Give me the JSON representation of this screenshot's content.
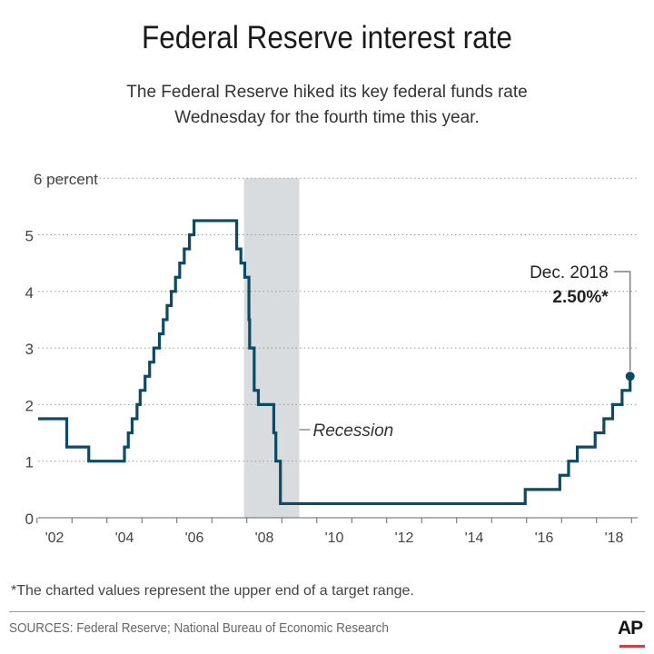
{
  "title": "Federal Reserve interest rate",
  "subtitle_line1": "The Federal Reserve hiked its key federal funds rate",
  "subtitle_line2": "Wednesday for the fourth time this year.",
  "footnote": "*The charted values represent the upper end of a target range.",
  "sources": "SOURCES: Federal Reserve; National Bureau of Economic Research",
  "logo": "AP",
  "colors": {
    "line": "#0d4a63",
    "recession": "#d9dcdf",
    "grid": "#999999",
    "logo_accent": "#d83a4a"
  },
  "chart_data": {
    "type": "line",
    "step": true,
    "ylim": [
      0,
      6
    ],
    "yticks": [
      0,
      1,
      2,
      3,
      4,
      5,
      6
    ],
    "ytick_labels": [
      "0",
      "1",
      "2",
      "3",
      "4",
      "5",
      "6 percent"
    ],
    "xlim": [
      2002.0,
      2019.0
    ],
    "xtick_labels": [
      "'02",
      "'04",
      "'06",
      "'08",
      "'10",
      "'12",
      "'14",
      "'16",
      "'18"
    ],
    "xtick_years": [
      2002,
      2004,
      2006,
      2008,
      2010,
      2012,
      2014,
      2016,
      2018
    ],
    "grid": "horizontal dotted",
    "recession": {
      "start": 2007.92,
      "end": 2009.5,
      "label": "Recession"
    },
    "annotation": {
      "label": "Dec. 2018",
      "value_label": "2.50%*",
      "x": 2018.96,
      "y": 2.5
    },
    "x": [
      2002.0,
      2002.85,
      2003.48,
      2004.5,
      2004.61,
      2004.72,
      2004.86,
      2004.95,
      2005.09,
      2005.22,
      2005.34,
      2005.5,
      2005.61,
      2005.72,
      2005.84,
      2005.96,
      2006.08,
      2006.21,
      2006.36,
      2006.49,
      2007.71,
      2007.83,
      2007.94,
      2008.06,
      2008.08,
      2008.21,
      2008.33,
      2008.77,
      2008.83,
      2008.96,
      2015.96,
      2016.95,
      2017.2,
      2017.45,
      2017.96,
      2018.21,
      2018.46,
      2018.73,
      2018.96
    ],
    "y": [
      1.75,
      1.25,
      1.0,
      1.25,
      1.5,
      1.75,
      2.0,
      2.25,
      2.5,
      2.75,
      3.0,
      3.25,
      3.5,
      3.75,
      4.0,
      4.25,
      4.5,
      4.75,
      5.0,
      5.25,
      4.75,
      4.5,
      4.25,
      3.5,
      3.0,
      2.25,
      2.0,
      1.5,
      1.0,
      0.25,
      0.5,
      0.75,
      1.0,
      1.25,
      1.5,
      1.75,
      2.0,
      2.25,
      2.5
    ]
  }
}
